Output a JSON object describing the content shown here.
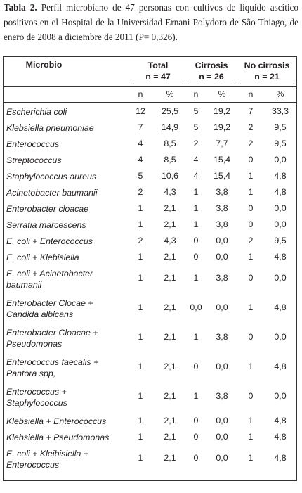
{
  "caption": {
    "label": "Tabla 2.",
    "text": " Perfil microbiano de 47 personas con cultivos de líquido ascítico positivos en el Hospital de la Universidad Ernani Polydoro de São Thiago, de enero de 2008 a diciembre de 2011 (P= 0,326)."
  },
  "header": {
    "microbio": "Microbio",
    "total_l1": "Total",
    "total_l2": "n = 47",
    "cirrosis_l1": "Cirrosis",
    "cirrosis_l2": "n = 26",
    "nocirrosis_l1": "No cirrosis",
    "nocirrosis_l2": "n = 21",
    "n": "n",
    "pct": "%"
  },
  "rows": [
    {
      "name": "Escherichia coli",
      "tn": "12",
      "tp": "25,5",
      "cn": "5",
      "cp": "19,2",
      "nn": "7",
      "np": "33,3"
    },
    {
      "name": "Klebsiella pneumoniae",
      "tn": "7",
      "tp": "14,9",
      "cn": "5",
      "cp": "19,2",
      "nn": "2",
      "np": "9,5"
    },
    {
      "name": "Enterococcus",
      "tn": "4",
      "tp": "8,5",
      "cn": "2",
      "cp": "7,7",
      "nn": "2",
      "np": "9,5"
    },
    {
      "name": "Streptococcus",
      "tn": "4",
      "tp": "8,5",
      "cn": "4",
      "cp": "15,4",
      "nn": "0",
      "np": "0,0"
    },
    {
      "name": "Staphylococcus aureus",
      "tn": "5",
      "tp": "10,6",
      "cn": "4",
      "cp": "15,4",
      "nn": "1",
      "np": "4,8"
    },
    {
      "name": "Acinetobacter baumanii",
      "tn": "2",
      "tp": "4,3",
      "cn": "1",
      "cp": "3,8",
      "nn": "1",
      "np": "4,8"
    },
    {
      "name": "Enterobacter cloacae",
      "tn": "1",
      "tp": "2,1",
      "cn": "1",
      "cp": "3,8",
      "nn": "0",
      "np": "0,0"
    },
    {
      "name": "Serratia marcescens",
      "tn": "1",
      "tp": "2,1",
      "cn": "1",
      "cp": "3,8",
      "nn": "0",
      "np": "0,0"
    },
    {
      "name": "E. coli + Enterococcus",
      "tn": "2",
      "tp": "4,3",
      "cn": "0",
      "cp": "0,0",
      "nn": "2",
      "np": "9,5"
    },
    {
      "name": "E. coli + Klebisiella",
      "tn": "1",
      "tp": "2,1",
      "cn": "0",
      "cp": "0,0",
      "nn": "1",
      "np": "4,8"
    },
    {
      "name": "E. coli + Acinetobacter baumanii",
      "tn": "1",
      "tp": "2,1",
      "cn": "1",
      "cp": "3,8",
      "nn": "0",
      "np": "0,0"
    },
    {
      "name": "Enterobacter Clocae + Candida albicans",
      "tn": "1",
      "tp": "2,1",
      "cn": "0,0",
      "cp": "0,0",
      "nn": "1",
      "np": "4,8"
    },
    {
      "name": "Enterobacter Cloacae + Pseudomonas",
      "tn": "1",
      "tp": "2,1",
      "cn": "1",
      "cp": "3,8",
      "nn": "0",
      "np": "0,0"
    },
    {
      "name": "Enterococcus faecalis + Pantora spp,",
      "tn": "1",
      "tp": "2,1",
      "cn": "0",
      "cp": "0,0",
      "nn": "1",
      "np": "4,8"
    },
    {
      "name": "Enterococcus + Staphylococcus",
      "tn": "1",
      "tp": "2,1",
      "cn": "1",
      "cp": "3,8",
      "nn": "0",
      "np": "0,0"
    },
    {
      "name": "Klebsiella + Enterococcus",
      "tn": "1",
      "tp": "2,1",
      "cn": "0",
      "cp": "0,0",
      "nn": "1",
      "np": "4,8"
    },
    {
      "name": "Klebsiella + Pseudomonas",
      "tn": "1",
      "tp": "2,1",
      "cn": "0",
      "cp": "0,0",
      "nn": "1",
      "np": "4,8"
    },
    {
      "name": "E. coli + Kleibisiella + Enterococcus",
      "tn": "1",
      "tp": "2,1",
      "cn": "0",
      "cp": "0,0",
      "nn": "1",
      "np": "4,8"
    }
  ]
}
